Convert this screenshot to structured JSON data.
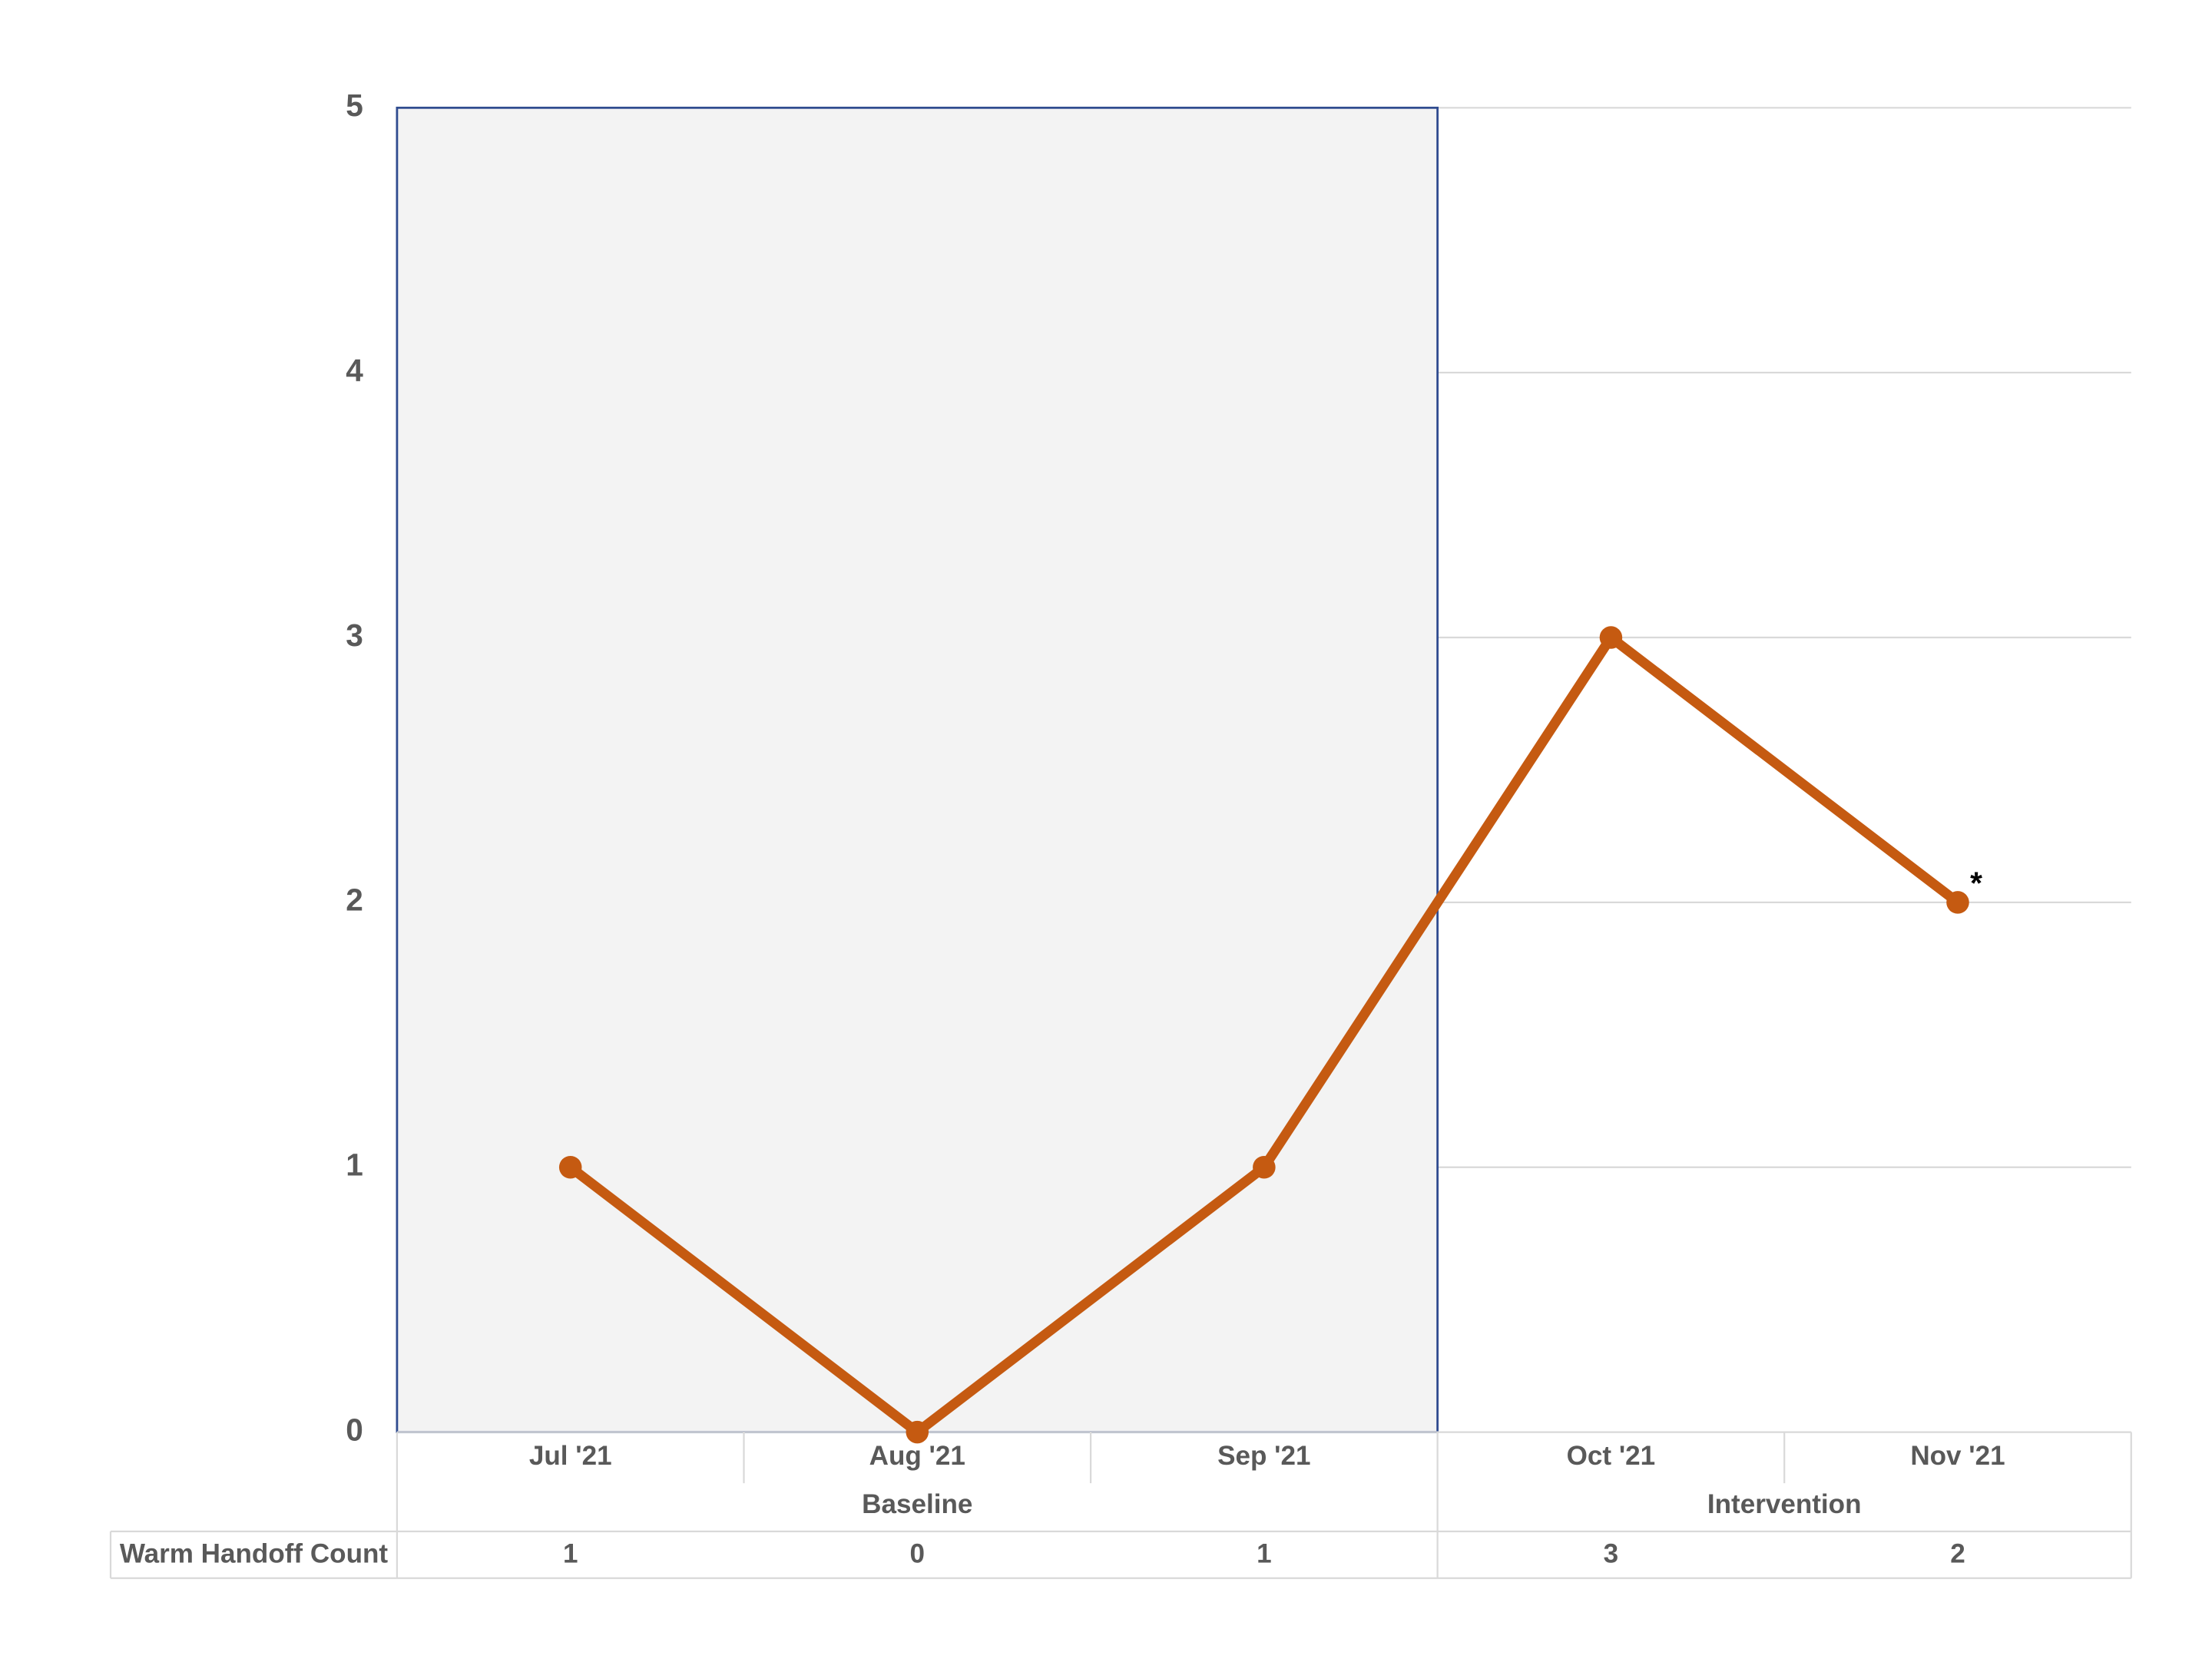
{
  "chart_data": {
    "type": "line",
    "categories": [
      "Jul '21",
      "Aug '21",
      "Sep '21",
      "Oct '21",
      "Nov '21"
    ],
    "phases": [
      "Baseline",
      "Baseline",
      "Baseline",
      "Intervention",
      "Intervention"
    ],
    "shaded_phase": "Baseline",
    "series": [
      {
        "name": "Warm Handoff Count",
        "color": "#c55a11",
        "values": [
          1,
          0,
          1,
          3,
          2
        ]
      }
    ],
    "annotations": [
      {
        "text": "*",
        "category": "Nov '21"
      }
    ],
    "ylim": [
      0,
      5
    ],
    "yticks": [
      0,
      1,
      2,
      3,
      4,
      5
    ],
    "grid": true
  }
}
